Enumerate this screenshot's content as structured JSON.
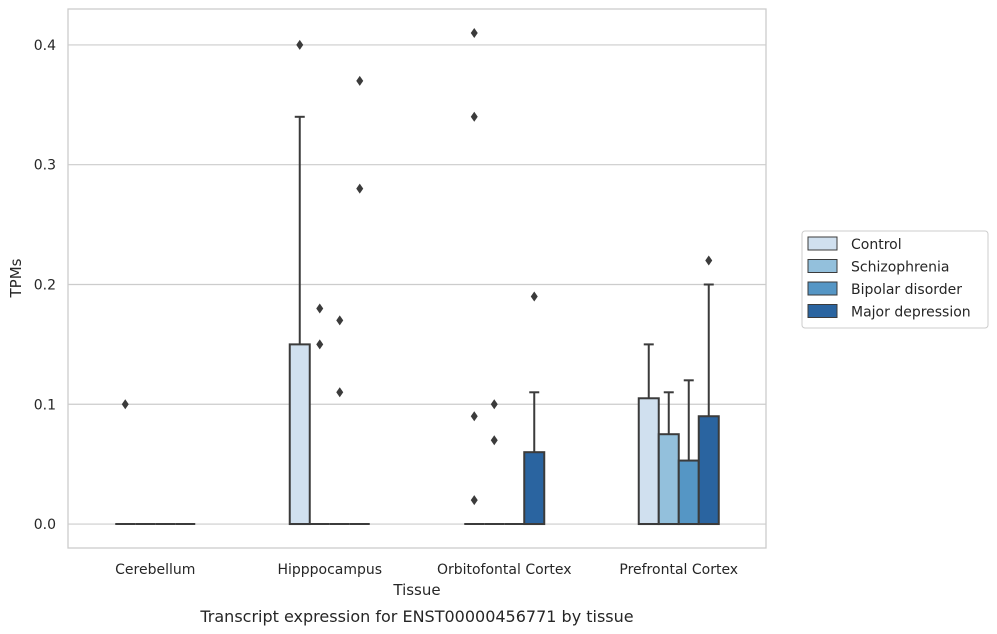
{
  "chart_data": {
    "type": "box",
    "caption": "Transcript expression for ENST00000456771 by tissue",
    "xlabel": "Tissue",
    "ylabel": "TPMs",
    "ylim": [
      -0.02,
      0.43
    ],
    "yticks": [
      "0.0",
      "0.1",
      "0.2",
      "0.3",
      "0.4"
    ],
    "categories": [
      "Cerebellum",
      "Hipppocampus",
      "Orbitofontal Cortex",
      "Prefrontal Cortex"
    ],
    "grid": "horizontal",
    "legend_position": "right",
    "series": [
      {
        "name": "Control",
        "color": "#d0e0ef",
        "boxes": [
          {
            "q1": 0.0,
            "median": 0.0,
            "q3": 0.0,
            "whisker_low": 0.0,
            "whisker_high": 0.0,
            "outliers": [
              0.1
            ]
          },
          {
            "q1": 0.0,
            "median": 0.0,
            "q3": 0.15,
            "whisker_low": 0.0,
            "whisker_high": 0.34,
            "outliers": [
              0.4
            ]
          },
          {
            "q1": 0.0,
            "median": 0.0,
            "q3": 0.0,
            "whisker_low": 0.0,
            "whisker_high": 0.0,
            "outliers": [
              0.41,
              0.34,
              0.09,
              0.02
            ]
          },
          {
            "q1": 0.0,
            "median": 0.0,
            "q3": 0.105,
            "whisker_low": 0.0,
            "whisker_high": 0.15,
            "outliers": []
          }
        ]
      },
      {
        "name": "Schizophrenia",
        "color": "#93c0dc",
        "boxes": [
          {
            "q1": 0.0,
            "median": 0.0,
            "q3": 0.0,
            "whisker_low": 0.0,
            "whisker_high": 0.0,
            "outliers": []
          },
          {
            "q1": 0.0,
            "median": 0.0,
            "q3": 0.0,
            "whisker_low": 0.0,
            "whisker_high": 0.0,
            "outliers": [
              0.18,
              0.15
            ]
          },
          {
            "q1": 0.0,
            "median": 0.0,
            "q3": 0.0,
            "whisker_low": 0.0,
            "whisker_high": 0.0,
            "outliers": [
              0.1,
              0.07
            ]
          },
          {
            "q1": 0.0,
            "median": 0.0,
            "q3": 0.075,
            "whisker_low": 0.0,
            "whisker_high": 0.11,
            "outliers": []
          }
        ]
      },
      {
        "name": "Bipolar disorder",
        "color": "#5596c5",
        "boxes": [
          {
            "q1": 0.0,
            "median": 0.0,
            "q3": 0.0,
            "whisker_low": 0.0,
            "whisker_high": 0.0,
            "outliers": []
          },
          {
            "q1": 0.0,
            "median": 0.0,
            "q3": 0.0,
            "whisker_low": 0.0,
            "whisker_high": 0.0,
            "outliers": [
              0.17,
              0.11
            ]
          },
          {
            "q1": 0.0,
            "median": 0.0,
            "q3": 0.0,
            "whisker_low": 0.0,
            "whisker_high": 0.0,
            "outliers": []
          },
          {
            "q1": 0.0,
            "median": 0.0,
            "q3": 0.053,
            "whisker_low": 0.0,
            "whisker_high": 0.12,
            "outliers": []
          }
        ]
      },
      {
        "name": "Major depression",
        "color": "#2a64a0",
        "boxes": [
          {
            "q1": 0.0,
            "median": 0.0,
            "q3": 0.0,
            "whisker_low": 0.0,
            "whisker_high": 0.0,
            "outliers": []
          },
          {
            "q1": 0.0,
            "median": 0.0,
            "q3": 0.0,
            "whisker_low": 0.0,
            "whisker_high": 0.0,
            "outliers": [
              0.37,
              0.28
            ]
          },
          {
            "q1": 0.0,
            "median": 0.0,
            "q3": 0.06,
            "whisker_low": 0.0,
            "whisker_high": 0.11,
            "outliers": [
              0.19
            ]
          },
          {
            "q1": 0.0,
            "median": 0.0,
            "q3": 0.09,
            "whisker_low": 0.0,
            "whisker_high": 0.2,
            "outliers": [
              0.22
            ]
          }
        ]
      }
    ]
  }
}
